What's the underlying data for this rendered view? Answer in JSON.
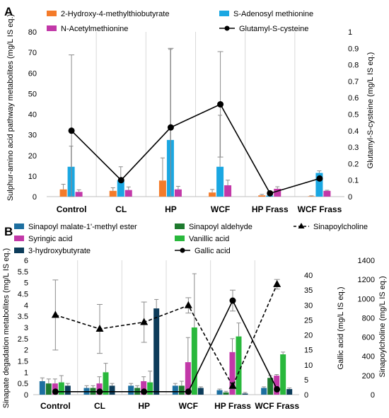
{
  "panels": [
    {
      "letter": "A",
      "ylabel": "Sulphur-amino acid pathway metabolites (mg/L IS eq.)",
      "y2label": "Glutamyl-S-cysteine (mg/L IS eq.)"
    },
    {
      "letter": "B",
      "ylabel": "Sinapate degadation metabolites (mg/L IS eq.)",
      "y2label": "Gallic acid (mg/L IS eq.)",
      "y3label": "Sinapoylcholine (mg/L IS eq.)"
    }
  ],
  "chart_data": [
    {
      "type": "bar",
      "categories": [
        "Control",
        "CL",
        "HP",
        "WCF",
        "HP Frass",
        "WCF Frass"
      ],
      "ylim": [
        0,
        80
      ],
      "yticks": [
        0,
        10,
        20,
        30,
        40,
        50,
        60,
        70,
        80
      ],
      "y2lim": [
        0,
        1.0
      ],
      "y2ticks": [
        "0",
        "0.1",
        "0.2",
        "0.3",
        "0.4",
        "0.5",
        "0.6",
        "0.7",
        "0.8",
        "0.9",
        "1"
      ],
      "grid": "vertical category separators",
      "legend_position": "top",
      "series": [
        {
          "name": "2-Hydroxy-4-methylthiobutyrate",
          "kind": "bar",
          "axis": "left",
          "color": "#f47b2a",
          "values": [
            3.5,
            2.8,
            7.8,
            2.0,
            0.6,
            0.2
          ],
          "errors": [
            2.5,
            1.5,
            11.0,
            1.5,
            0.5,
            0.2
          ]
        },
        {
          "name": "S-Adenosyl methionine",
          "kind": "bar",
          "axis": "left",
          "color": "#1aa7e2",
          "values": [
            14.5,
            8.0,
            27.5,
            14.5,
            0.5,
            11.5
          ],
          "errors": [
            10.0,
            6.5,
            44.0,
            25.0,
            0.5,
            1.0
          ]
        },
        {
          "name": "N-Acetylmethionine",
          "kind": "bar",
          "axis": "left",
          "color": "#c238a8",
          "values": [
            2.3,
            3.2,
            3.5,
            5.5,
            3.8,
            2.8
          ],
          "errors": [
            1.0,
            1.5,
            1.5,
            2.5,
            1.0,
            0.3
          ]
        },
        {
          "name": "Glutamyl-S-cysteine",
          "kind": "line",
          "axis": "right",
          "color": "#000000",
          "marker": "circle",
          "dash": "solid",
          "values": [
            0.4,
            0.1,
            0.42,
            0.56,
            0.02,
            0.11
          ],
          "errors": [
            0.46,
            0,
            0.48,
            0.32,
            0,
            0
          ]
        }
      ]
    },
    {
      "type": "bar",
      "categories": [
        "Control",
        "CL",
        "HP",
        "WCF",
        "HP Frass",
        "WCF Frass"
      ],
      "ylim": [
        0,
        6
      ],
      "yticks": [
        0,
        0.5,
        1,
        1.5,
        2,
        2.5,
        3,
        3.5,
        4,
        4.5,
        5,
        5.5,
        6
      ],
      "y2lim": [
        0,
        45
      ],
      "y2ticks": [
        0,
        5,
        10,
        15,
        20,
        25,
        30,
        35,
        40
      ],
      "y3lim": [
        0,
        1400
      ],
      "y3ticks": [
        0,
        200,
        400,
        600,
        800,
        1000,
        1200,
        1400
      ],
      "grid": "vertical category separators",
      "legend_position": "top",
      "series": [
        {
          "name": "Sinapoyl malate-1'-methyl ester",
          "kind": "bar",
          "axis": "left",
          "color": "#1d6fa0",
          "values": [
            0.6,
            0.3,
            0.4,
            0.4,
            0.2,
            0.3
          ],
          "errors": [
            0.15,
            0.1,
            0.1,
            0.1,
            0.05,
            0.05
          ]
        },
        {
          "name": "Sinapoyl aldehyde",
          "kind": "bar",
          "axis": "left",
          "color": "#1e7a2e",
          "values": [
            0.5,
            0.3,
            0.3,
            0.4,
            0.1,
            0.75
          ],
          "errors": [
            0.2,
            0.1,
            0.1,
            0.2,
            0.05,
            0.1
          ]
        },
        {
          "name": "Syringic acid",
          "kind": "bar",
          "axis": "left",
          "color": "#c238a8",
          "values": [
            0.5,
            0.5,
            0.6,
            1.45,
            1.9,
            0.85
          ],
          "errors": [
            0.2,
            0.3,
            0.2,
            1.1,
            0.6,
            0.05
          ]
        },
        {
          "name": "Vanillic acid",
          "kind": "bar",
          "axis": "left",
          "color": "#29b83c",
          "values": [
            0.55,
            1.0,
            0.55,
            3.0,
            2.6,
            1.8
          ],
          "errors": [
            0.3,
            0.4,
            0.5,
            2.4,
            0.6,
            0.1
          ]
        },
        {
          "name": "3-hydroxybutyrate",
          "kind": "bar",
          "axis": "left",
          "color": "#0d3c5a",
          "values": [
            0.4,
            0.4,
            3.85,
            0.3,
            0.05,
            0.25
          ],
          "errors": [
            0.1,
            0.1,
            0.4,
            0.05,
            0.05,
            0.05
          ]
        },
        {
          "name": "Gallic acid",
          "kind": "line",
          "axis": "right",
          "color": "#000000",
          "marker": "circle",
          "dash": "solid",
          "values": [
            1.0,
            1.0,
            1.0,
            1.0,
            31.5,
            1.8
          ],
          "errors": [
            0,
            0,
            0,
            0,
            3.5,
            0
          ]
        },
        {
          "name": "Sinapoylcholine",
          "kind": "line",
          "axis": "right2",
          "color": "#000000",
          "marker": "triangle",
          "dash": "dashed",
          "values": [
            830,
            685,
            755,
            930,
            90,
            1150
          ],
          "errors": [
            365,
            255,
            210,
            80,
            30,
            50
          ]
        }
      ]
    }
  ]
}
